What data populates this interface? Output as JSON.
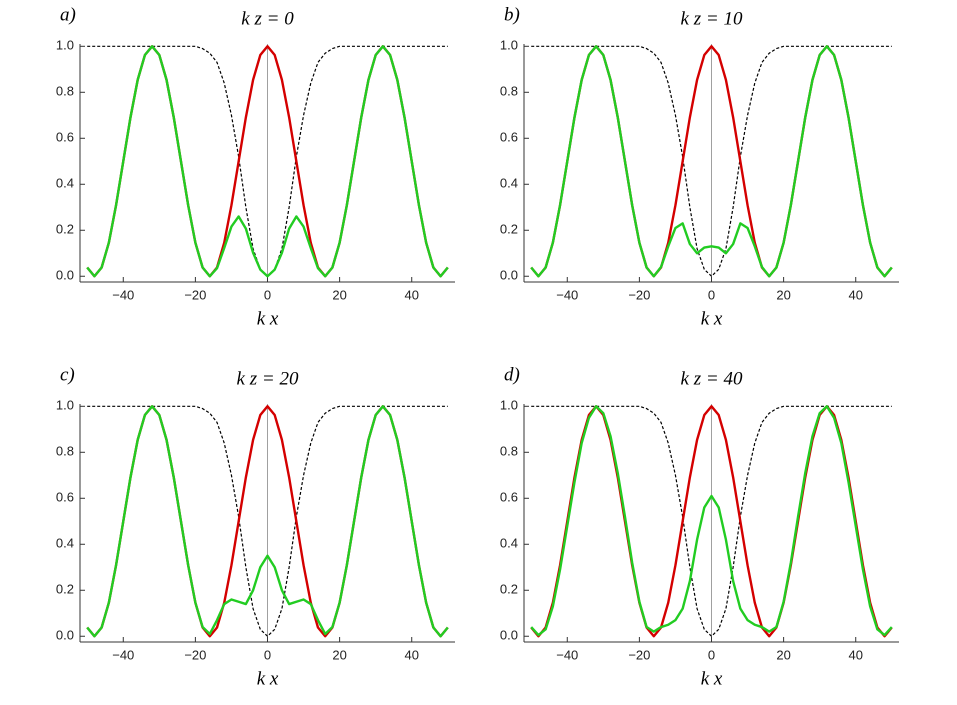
{
  "chart_data": [
    {
      "type": "line",
      "panel_label": "a)",
      "title": "k z = 0",
      "x_label": "k x",
      "xlim": [
        -52,
        52
      ],
      "ylim": [
        -0.025,
        1.01
      ],
      "xticks": [
        {
          "value": -40,
          "label": "−40"
        },
        {
          "value": -20,
          "label": "−20"
        },
        0,
        20,
        40
      ],
      "yticks": [
        {
          "value": 0,
          "label": "0.0"
        },
        0.2,
        0.4,
        0.6,
        0.8,
        {
          "value": 1,
          "label": "1.0"
        }
      ],
      "x": [
        -50,
        -48,
        -46,
        -44,
        -42,
        -40,
        -38,
        -36,
        -34,
        -32,
        -30,
        -28,
        -26,
        -24,
        -22,
        -20,
        -18,
        -16,
        -14,
        -12,
        -10,
        -8,
        -6,
        -4,
        -2,
        0,
        2,
        4,
        6,
        8,
        10,
        12,
        14,
        16,
        18,
        20,
        22,
        24,
        26,
        28,
        30,
        32,
        34,
        36,
        38,
        40,
        42,
        44,
        46,
        48,
        50
      ],
      "series": [
        {
          "color": "#000000",
          "line_style": "dashed",
          "values": [
            1,
            1,
            1,
            1,
            1,
            1,
            1,
            1,
            1,
            1,
            1,
            1,
            1,
            1,
            1,
            1,
            0.99,
            0.97,
            0.93,
            0.84,
            0.7,
            0.52,
            0.3,
            0.12,
            0.03,
            0,
            0.03,
            0.12,
            0.3,
            0.52,
            0.7,
            0.84,
            0.93,
            0.97,
            0.99,
            1,
            1,
            1,
            1,
            1,
            1,
            1,
            1,
            1,
            1,
            1,
            1,
            1,
            1,
            1,
            1
          ]
        },
        {
          "color": "#d40000",
          "line_style": "solid",
          "values": [
            0.038,
            0,
            0.038,
            0.146,
            0.309,
            0.5,
            0.691,
            0.854,
            0.962,
            1,
            0.962,
            0.854,
            0.691,
            0.5,
            0.309,
            0.146,
            0.038,
            0,
            0.038,
            0.146,
            0.309,
            0.5,
            0.691,
            0.854,
            0.962,
            1,
            0.962,
            0.854,
            0.691,
            0.5,
            0.309,
            0.146,
            0.038,
            0,
            0.038,
            0.146,
            0.309,
            0.5,
            0.691,
            0.854,
            0.962,
            1,
            0.962,
            0.854,
            0.691,
            0.5,
            0.309,
            0.146,
            0.038,
            0,
            0.038
          ]
        },
        {
          "color": "#22cc22",
          "line_style": "solid",
          "values": [
            0.038,
            0,
            0.038,
            0.146,
            0.309,
            0.5,
            0.691,
            0.854,
            0.962,
            1,
            0.962,
            0.854,
            0.691,
            0.5,
            0.309,
            0.146,
            0.038,
            0,
            0.035,
            0.123,
            0.216,
            0.26,
            0.207,
            0.102,
            0.029,
            0,
            0.029,
            0.102,
            0.207,
            0.26,
            0.216,
            0.123,
            0.035,
            0,
            0.038,
            0.146,
            0.309,
            0.5,
            0.691,
            0.854,
            0.962,
            1,
            0.962,
            0.854,
            0.691,
            0.5,
            0.309,
            0.146,
            0.038,
            0,
            0.038
          ]
        }
      ]
    },
    {
      "type": "line",
      "panel_label": "b)",
      "title": "k z = 10",
      "x_label": "k x",
      "xlim": [
        -52,
        52
      ],
      "ylim": [
        -0.025,
        1.01
      ],
      "xticks": [
        {
          "value": -40,
          "label": "−40"
        },
        {
          "value": -20,
          "label": "−20"
        },
        0,
        20,
        40
      ],
      "yticks": [
        {
          "value": 0,
          "label": "0.0"
        },
        0.2,
        0.4,
        0.6,
        0.8,
        {
          "value": 1,
          "label": "1.0"
        }
      ],
      "x": [
        -50,
        -48,
        -46,
        -44,
        -42,
        -40,
        -38,
        -36,
        -34,
        -32,
        -30,
        -28,
        -26,
        -24,
        -22,
        -20,
        -18,
        -16,
        -14,
        -12,
        -10,
        -8,
        -6,
        -4,
        -2,
        0,
        2,
        4,
        6,
        8,
        10,
        12,
        14,
        16,
        18,
        20,
        22,
        24,
        26,
        28,
        30,
        32,
        34,
        36,
        38,
        40,
        42,
        44,
        46,
        48,
        50
      ],
      "series": [
        {
          "color": "#000000",
          "line_style": "dashed",
          "values": [
            1,
            1,
            1,
            1,
            1,
            1,
            1,
            1,
            1,
            1,
            1,
            1,
            1,
            1,
            1,
            1,
            0.99,
            0.97,
            0.93,
            0.84,
            0.7,
            0.52,
            0.3,
            0.12,
            0.03,
            0,
            0.03,
            0.12,
            0.3,
            0.52,
            0.7,
            0.84,
            0.93,
            0.97,
            0.99,
            1,
            1,
            1,
            1,
            1,
            1,
            1,
            1,
            1,
            1,
            1,
            1,
            1,
            1,
            1,
            1
          ]
        },
        {
          "color": "#d40000",
          "line_style": "solid",
          "values": [
            0.038,
            0,
            0.038,
            0.146,
            0.309,
            0.5,
            0.691,
            0.854,
            0.962,
            1,
            0.962,
            0.854,
            0.691,
            0.5,
            0.309,
            0.146,
            0.038,
            0,
            0.038,
            0.146,
            0.309,
            0.5,
            0.691,
            0.854,
            0.962,
            1,
            0.962,
            0.854,
            0.691,
            0.5,
            0.309,
            0.146,
            0.038,
            0,
            0.038,
            0.146,
            0.309,
            0.5,
            0.691,
            0.854,
            0.962,
            1,
            0.962,
            0.854,
            0.691,
            0.5,
            0.309,
            0.146,
            0.038,
            0,
            0.038
          ]
        },
        {
          "color": "#22cc22",
          "line_style": "solid",
          "values": [
            0.038,
            0,
            0.038,
            0.146,
            0.309,
            0.5,
            0.691,
            0.854,
            0.962,
            1,
            0.962,
            0.854,
            0.691,
            0.5,
            0.309,
            0.146,
            0.038,
            0,
            0.04,
            0.13,
            0.21,
            0.23,
            0.14,
            0.1,
            0.125,
            0.13,
            0.125,
            0.1,
            0.14,
            0.23,
            0.21,
            0.13,
            0.04,
            0,
            0.038,
            0.146,
            0.309,
            0.5,
            0.691,
            0.854,
            0.962,
            1,
            0.962,
            0.854,
            0.691,
            0.5,
            0.309,
            0.146,
            0.038,
            0,
            0.038
          ]
        }
      ]
    },
    {
      "type": "line",
      "panel_label": "c)",
      "title": "k z = 20",
      "x_label": "k x",
      "xlim": [
        -52,
        52
      ],
      "ylim": [
        -0.025,
        1.01
      ],
      "xticks": [
        {
          "value": -40,
          "label": "−40"
        },
        {
          "value": -20,
          "label": "−20"
        },
        0,
        20,
        40
      ],
      "yticks": [
        {
          "value": 0,
          "label": "0.0"
        },
        0.2,
        0.4,
        0.6,
        0.8,
        {
          "value": 1,
          "label": "1.0"
        }
      ],
      "x": [
        -50,
        -48,
        -46,
        -44,
        -42,
        -40,
        -38,
        -36,
        -34,
        -32,
        -30,
        -28,
        -26,
        -24,
        -22,
        -20,
        -18,
        -16,
        -14,
        -12,
        -10,
        -8,
        -6,
        -4,
        -2,
        0,
        2,
        4,
        6,
        8,
        10,
        12,
        14,
        16,
        18,
        20,
        22,
        24,
        26,
        28,
        30,
        32,
        34,
        36,
        38,
        40,
        42,
        44,
        46,
        48,
        50
      ],
      "series": [
        {
          "color": "#000000",
          "line_style": "dashed",
          "values": [
            1,
            1,
            1,
            1,
            1,
            1,
            1,
            1,
            1,
            1,
            1,
            1,
            1,
            1,
            1,
            1,
            0.99,
            0.97,
            0.93,
            0.84,
            0.7,
            0.52,
            0.3,
            0.12,
            0.03,
            0,
            0.03,
            0.12,
            0.3,
            0.52,
            0.7,
            0.84,
            0.93,
            0.97,
            0.99,
            1,
            1,
            1,
            1,
            1,
            1,
            1,
            1,
            1,
            1,
            1,
            1,
            1,
            1,
            1,
            1
          ]
        },
        {
          "color": "#d40000",
          "line_style": "solid",
          "values": [
            0.038,
            0,
            0.038,
            0.146,
            0.309,
            0.5,
            0.691,
            0.854,
            0.962,
            1,
            0.962,
            0.854,
            0.691,
            0.5,
            0.309,
            0.146,
            0.038,
            0,
            0.038,
            0.146,
            0.309,
            0.5,
            0.691,
            0.854,
            0.962,
            1,
            0.962,
            0.854,
            0.691,
            0.5,
            0.309,
            0.146,
            0.038,
            0,
            0.038,
            0.146,
            0.309,
            0.5,
            0.691,
            0.854,
            0.962,
            1,
            0.962,
            0.854,
            0.691,
            0.5,
            0.309,
            0.146,
            0.038,
            0,
            0.038
          ]
        },
        {
          "color": "#22cc22",
          "line_style": "solid",
          "values": [
            0.038,
            0,
            0.038,
            0.146,
            0.309,
            0.5,
            0.691,
            0.854,
            0.962,
            1,
            0.962,
            0.854,
            0.691,
            0.5,
            0.309,
            0.146,
            0.04,
            0.01,
            0.07,
            0.14,
            0.16,
            0.15,
            0.14,
            0.2,
            0.3,
            0.35,
            0.3,
            0.2,
            0.14,
            0.15,
            0.16,
            0.14,
            0.07,
            0.01,
            0.04,
            0.146,
            0.309,
            0.5,
            0.691,
            0.854,
            0.962,
            1,
            0.962,
            0.854,
            0.691,
            0.5,
            0.309,
            0.146,
            0.038,
            0,
            0.038
          ]
        }
      ]
    },
    {
      "type": "line",
      "panel_label": "d)",
      "title": "k z = 40",
      "x_label": "k x",
      "xlim": [
        -52,
        52
      ],
      "ylim": [
        -0.025,
        1.01
      ],
      "xticks": [
        {
          "value": -40,
          "label": "−40"
        },
        {
          "value": -20,
          "label": "−20"
        },
        0,
        20,
        40
      ],
      "yticks": [
        {
          "value": 0,
          "label": "0.0"
        },
        0.2,
        0.4,
        0.6,
        0.8,
        {
          "value": 1,
          "label": "1.0"
        }
      ],
      "x": [
        -50,
        -48,
        -46,
        -44,
        -42,
        -40,
        -38,
        -36,
        -34,
        -32,
        -30,
        -28,
        -26,
        -24,
        -22,
        -20,
        -18,
        -16,
        -14,
        -12,
        -10,
        -8,
        -6,
        -4,
        -2,
        0,
        2,
        4,
        6,
        8,
        10,
        12,
        14,
        16,
        18,
        20,
        22,
        24,
        26,
        28,
        30,
        32,
        34,
        36,
        38,
        40,
        42,
        44,
        46,
        48,
        50
      ],
      "series": [
        {
          "color": "#000000",
          "line_style": "dashed",
          "values": [
            1,
            1,
            1,
            1,
            1,
            1,
            1,
            1,
            1,
            1,
            1,
            1,
            1,
            1,
            1,
            1,
            0.99,
            0.97,
            0.93,
            0.84,
            0.7,
            0.52,
            0.3,
            0.12,
            0.03,
            0,
            0.03,
            0.12,
            0.3,
            0.52,
            0.7,
            0.84,
            0.93,
            0.97,
            0.99,
            1,
            1,
            1,
            1,
            1,
            1,
            1,
            1,
            1,
            1,
            1,
            1,
            1,
            1,
            1,
            1
          ]
        },
        {
          "color": "#d40000",
          "line_style": "solid",
          "values": [
            0.038,
            0,
            0.038,
            0.146,
            0.309,
            0.5,
            0.691,
            0.854,
            0.962,
            1,
            0.962,
            0.854,
            0.691,
            0.5,
            0.309,
            0.146,
            0.038,
            0,
            0.038,
            0.146,
            0.309,
            0.5,
            0.691,
            0.854,
            0.962,
            1,
            0.962,
            0.854,
            0.691,
            0.5,
            0.309,
            0.146,
            0.038,
            0,
            0.038,
            0.146,
            0.309,
            0.5,
            0.691,
            0.854,
            0.962,
            1,
            0.962,
            0.854,
            0.691,
            0.5,
            0.309,
            0.146,
            0.038,
            0,
            0.038
          ]
        },
        {
          "color": "#22cc22",
          "line_style": "solid",
          "values": [
            0.04,
            0.005,
            0.03,
            0.13,
            0.29,
            0.48,
            0.67,
            0.84,
            0.95,
            1,
            0.97,
            0.87,
            0.71,
            0.52,
            0.32,
            0.15,
            0.04,
            0.02,
            0.04,
            0.05,
            0.07,
            0.12,
            0.24,
            0.42,
            0.56,
            0.61,
            0.56,
            0.42,
            0.24,
            0.12,
            0.07,
            0.05,
            0.04,
            0.02,
            0.04,
            0.15,
            0.32,
            0.52,
            0.71,
            0.87,
            0.97,
            1,
            0.95,
            0.84,
            0.67,
            0.48,
            0.29,
            0.13,
            0.03,
            0.005,
            0.04
          ]
        }
      ]
    }
  ]
}
